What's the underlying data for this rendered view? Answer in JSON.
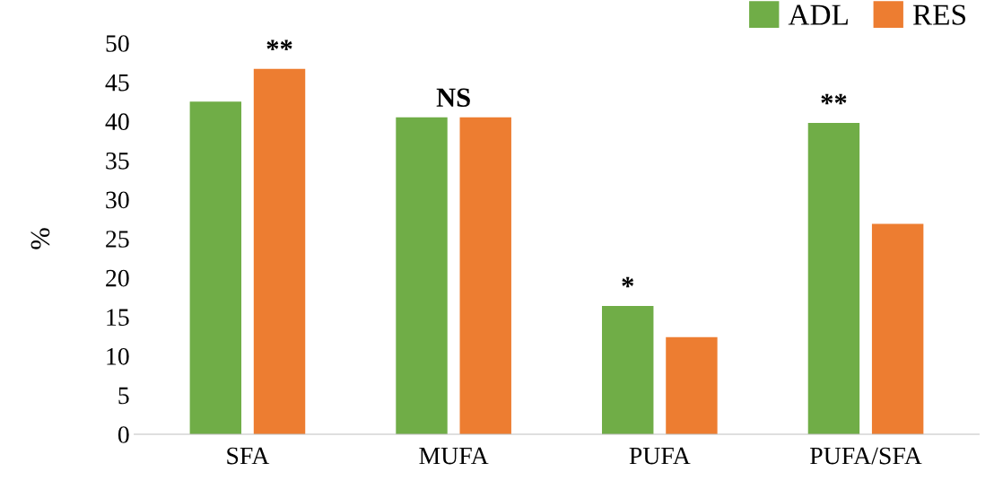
{
  "chart_data": {
    "type": "bar",
    "categories": [
      "SFA",
      "MUFA",
      "PUFA",
      "PUFA/SFA"
    ],
    "series": [
      {
        "name": "ADL",
        "color": "#70ad47",
        "values": [
          42.5,
          40.5,
          16.4,
          39.8
        ]
      },
      {
        "name": "RES",
        "color": "#ed7d31",
        "values": [
          46.7,
          40.5,
          12.4,
          26.9
        ]
      }
    ],
    "ylabel": "%",
    "ylim": [
      0,
      50
    ],
    "yticks": [
      0,
      5,
      10,
      15,
      20,
      25,
      30,
      35,
      40,
      45,
      50
    ],
    "grid": false,
    "legend": "top right",
    "annotations": [
      "**",
      "NS",
      "*",
      "**"
    ]
  }
}
